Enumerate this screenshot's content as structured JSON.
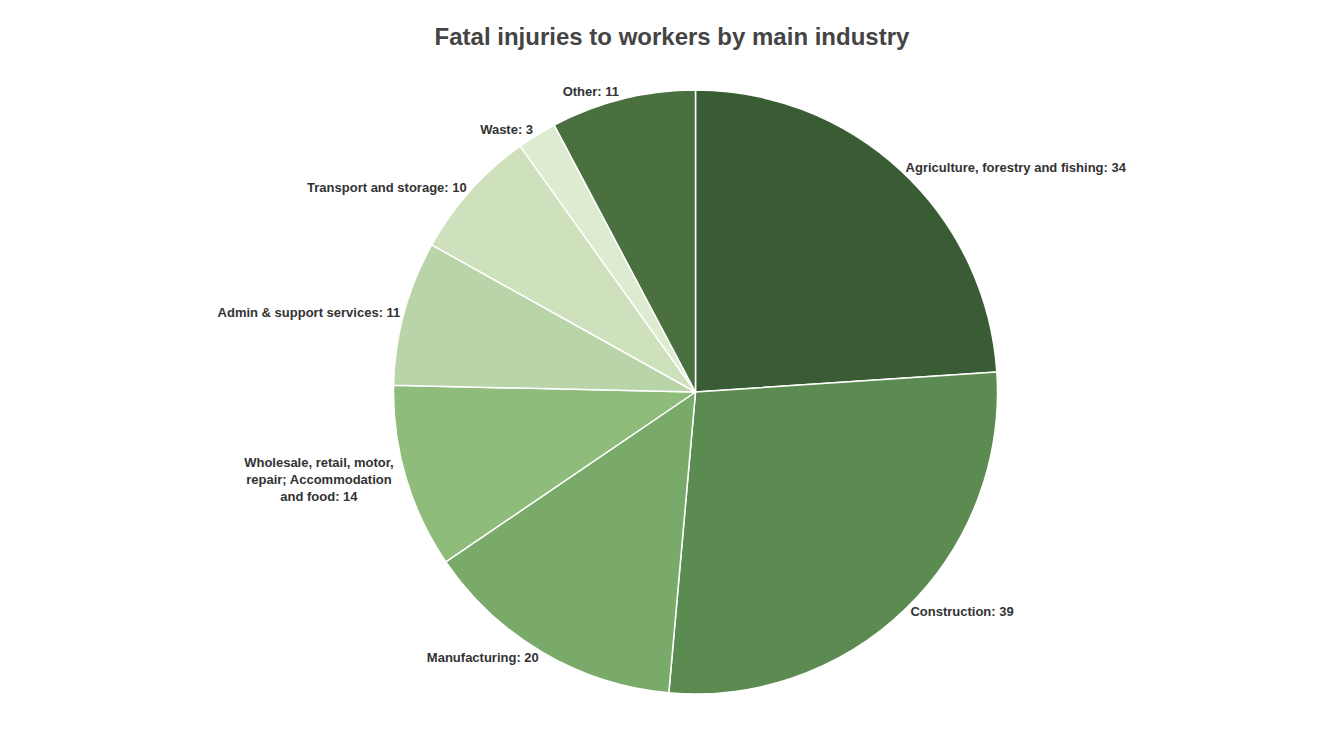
{
  "chart_data": {
    "type": "pie",
    "title": "Fatal injuries to workers by main industry",
    "categories": [
      "Agriculture, forestry and fishing",
      "Construction",
      "Manufacturing",
      "Wholesale, retail, motor,\nrepair; Accommodation\nand food",
      "Admin & support services",
      "Transport and storage",
      "Waste",
      "Other"
    ],
    "values": [
      34,
      39,
      20,
      14,
      11,
      10,
      3,
      11
    ],
    "value_labels": [
      "Agriculture, forestry and fishing: 34",
      "Construction: 39",
      "Manufacturing: 20",
      "Wholesale, retail, motor,\nrepair; Accommodation\nand food: 14",
      "Admin & support services: 11",
      "Transport and storage: 10",
      "Waste: 3",
      "Other: 11"
    ],
    "colors": [
      "#3a5c35",
      "#5c8b52",
      "#7aaa6a",
      "#8fbc7a",
      "#b8d4a8",
      "#cee0bc",
      "#ddecd0",
      "#4a7040"
    ],
    "data_labels": true,
    "legend": false
  }
}
